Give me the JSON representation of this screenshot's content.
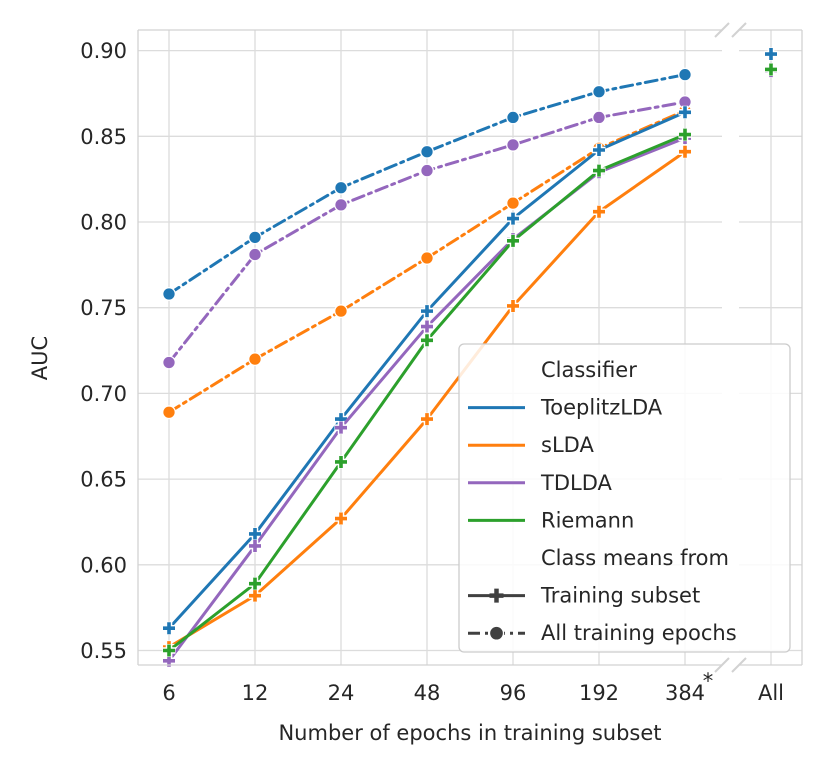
{
  "chart_data": {
    "type": "line",
    "xlabel": "Number of epochs in training subset",
    "ylabel": "AUC",
    "x_categories": [
      "6",
      "12",
      "24",
      "48",
      "96",
      "192",
      "384"
    ],
    "x_star_superscript": "*",
    "x_all_label": "All",
    "ylim": [
      0.54,
      0.905
    ],
    "yticks": [
      "0.55",
      "0.60",
      "0.65",
      "0.70",
      "0.75",
      "0.80",
      "0.85",
      "0.90"
    ],
    "ytick_values": [
      0.55,
      0.6,
      0.65,
      0.7,
      0.75,
      0.8,
      0.85,
      0.9
    ],
    "grid": true,
    "legend_position": "lower-right",
    "series": [
      {
        "name": "ToeplitzLDA",
        "color": "#1f77b4",
        "class_means": "Training subset",
        "values": [
          0.563,
          0.618,
          0.685,
          0.748,
          0.802,
          0.842,
          0.864
        ],
        "all": 0.898
      },
      {
        "name": "sLDA",
        "color": "#ff7f0e",
        "class_means": "Training subset",
        "values": [
          0.552,
          0.582,
          0.627,
          0.685,
          0.751,
          0.806,
          0.841
        ],
        "all": 0.888
      },
      {
        "name": "TDLDA",
        "color": "#9467bd",
        "class_means": "Training subset",
        "values": [
          0.544,
          0.611,
          0.68,
          0.739,
          0.79,
          0.829,
          0.849
        ],
        "all": 0.888
      },
      {
        "name": "Riemann",
        "color": "#2ca02c",
        "class_means": "Training subset",
        "values": [
          0.55,
          0.589,
          0.66,
          0.731,
          0.789,
          0.83,
          0.851
        ],
        "all": 0.889
      },
      {
        "name": "ToeplitzLDA",
        "color": "#1f77b4",
        "class_means": "All training epochs",
        "values": [
          0.758,
          0.791,
          0.82,
          0.841,
          0.861,
          0.876,
          0.886
        ]
      },
      {
        "name": "sLDA",
        "color": "#ff7f0e",
        "class_means": "All training epochs",
        "values": [
          0.689,
          0.72,
          0.748,
          0.779,
          0.811,
          0.843,
          0.865
        ]
      },
      {
        "name": "TDLDA",
        "color": "#9467bd",
        "class_means": "All training epochs",
        "values": [
          0.718,
          0.781,
          0.81,
          0.83,
          0.845,
          0.861,
          0.87
        ]
      }
    ],
    "legend": {
      "classifier_title": "Classifier",
      "classifiers": [
        {
          "label": "ToeplitzLDA",
          "color": "#1f77b4"
        },
        {
          "label": "sLDA",
          "color": "#ff7f0e"
        },
        {
          "label": "TDLDA",
          "color": "#9467bd"
        },
        {
          "label": "Riemann",
          "color": "#2ca02c"
        }
      ],
      "means_title": "Class means from",
      "means": [
        {
          "label": "Training subset",
          "marker": "plus",
          "dash": "solid"
        },
        {
          "label": "All training epochs",
          "marker": "circle",
          "dash": "dashdot"
        }
      ]
    }
  }
}
